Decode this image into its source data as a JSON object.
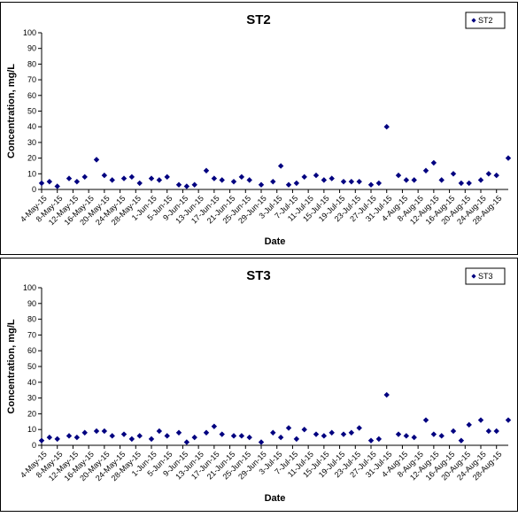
{
  "chart_data": [
    {
      "type": "scatter",
      "title": "ST2",
      "xlabel": "Date",
      "ylabel": "Concentration, mg/L",
      "ylim": [
        0,
        100
      ],
      "yticks": [
        0,
        10,
        20,
        30,
        40,
        50,
        60,
        70,
        80,
        90,
        100
      ],
      "xlim": [
        "2015-05-04",
        "2015-08-31"
      ],
      "x_tick_labels": [
        "4-May-15",
        "8-May-15",
        "12-May-15",
        "16-May-15",
        "20-May-15",
        "24-May-15",
        "28-May-15",
        "1-Jun-15",
        "5-Jun-15",
        "9-Jun-15",
        "13-Jun-15",
        "17-Jun-15",
        "21-Jun-15",
        "25-Jun-15",
        "29-Jun-15",
        "3-Jul-15",
        "7-Jul-15",
        "11-Jul-15",
        "15-Jul-15",
        "19-Jul-15",
        "23-Jul-15",
        "27-Jul-15",
        "31-Jul-15",
        "4-Aug-15",
        "8-Aug-15",
        "12-Aug-15",
        "16-Aug-15",
        "20-Aug-15",
        "24-Aug-15",
        "28-Aug-15"
      ],
      "legend_position": "top-right",
      "grid": false,
      "series": [
        {
          "name": "ST2",
          "color": "#000080",
          "marker": "diamond",
          "x": [
            "2015-05-04",
            "2015-05-06",
            "2015-05-08",
            "2015-05-11",
            "2015-05-13",
            "2015-05-15",
            "2015-05-18",
            "2015-05-20",
            "2015-05-22",
            "2015-05-25",
            "2015-05-27",
            "2015-05-29",
            "2015-06-01",
            "2015-06-03",
            "2015-06-05",
            "2015-06-08",
            "2015-06-10",
            "2015-06-12",
            "2015-06-15",
            "2015-06-17",
            "2015-06-19",
            "2015-06-22",
            "2015-06-24",
            "2015-06-26",
            "2015-06-29",
            "2015-07-02",
            "2015-07-04",
            "2015-07-06",
            "2015-07-08",
            "2015-07-10",
            "2015-07-13",
            "2015-07-15",
            "2015-07-17",
            "2015-07-20",
            "2015-07-22",
            "2015-07-24",
            "2015-07-27",
            "2015-07-29",
            "2015-07-31",
            "2015-08-03",
            "2015-08-05",
            "2015-08-07",
            "2015-08-10",
            "2015-08-12",
            "2015-08-14",
            "2015-08-17",
            "2015-08-19",
            "2015-08-21",
            "2015-08-24",
            "2015-08-26",
            "2015-08-28",
            "2015-08-31"
          ],
          "y": [
            4,
            5,
            2,
            7,
            5,
            8,
            19,
            9,
            6,
            7,
            8,
            4,
            7,
            6,
            8,
            3,
            2,
            3,
            12,
            7,
            6,
            5,
            8,
            6,
            3,
            5,
            15,
            3,
            4,
            8,
            9,
            6,
            7,
            5,
            5,
            5,
            3,
            4,
            40,
            9,
            6,
            6,
            12,
            17,
            6,
            10,
            4,
            4,
            6,
            10,
            9,
            20
          ]
        }
      ]
    },
    {
      "type": "scatter",
      "title": "ST3",
      "xlabel": "Date",
      "ylabel": "Concentration, mg/L",
      "ylim": [
        0,
        100
      ],
      "yticks": [
        0,
        10,
        20,
        30,
        40,
        50,
        60,
        70,
        80,
        90,
        100
      ],
      "xlim": [
        "2015-05-04",
        "2015-08-31"
      ],
      "x_tick_labels": [
        "4-May-15",
        "8-May-15",
        "12-May-15",
        "16-May-15",
        "20-May-15",
        "24-May-15",
        "28-May-15",
        "1-Jun-15",
        "5-Jun-15",
        "9-Jun-15",
        "13-Jun-15",
        "17-Jun-15",
        "21-Jun-15",
        "25-Jun-15",
        "29-Jun-15",
        "3-Jul-15",
        "7-Jul-15",
        "11-Jul-15",
        "15-Jul-15",
        "19-Jul-15",
        "23-Jul-15",
        "27-Jul-15",
        "31-Jul-15",
        "4-Aug-15",
        "8-Aug-15",
        "12-Aug-15",
        "16-Aug-15",
        "20-Aug-15",
        "24-Aug-15",
        "28-Aug-15"
      ],
      "legend_position": "top-right",
      "grid": false,
      "series": [
        {
          "name": "ST3",
          "color": "#000080",
          "marker": "diamond",
          "x": [
            "2015-05-04",
            "2015-05-06",
            "2015-05-08",
            "2015-05-11",
            "2015-05-13",
            "2015-05-15",
            "2015-05-18",
            "2015-05-20",
            "2015-05-22",
            "2015-05-25",
            "2015-05-27",
            "2015-05-29",
            "2015-06-01",
            "2015-06-03",
            "2015-06-05",
            "2015-06-08",
            "2015-06-10",
            "2015-06-12",
            "2015-06-15",
            "2015-06-17",
            "2015-06-19",
            "2015-06-22",
            "2015-06-24",
            "2015-06-26",
            "2015-06-29",
            "2015-07-02",
            "2015-07-04",
            "2015-07-06",
            "2015-07-08",
            "2015-07-10",
            "2015-07-13",
            "2015-07-15",
            "2015-07-17",
            "2015-07-20",
            "2015-07-22",
            "2015-07-24",
            "2015-07-27",
            "2015-07-29",
            "2015-07-31",
            "2015-08-03",
            "2015-08-05",
            "2015-08-07",
            "2015-08-10",
            "2015-08-12",
            "2015-08-14",
            "2015-08-17",
            "2015-08-19",
            "2015-08-21",
            "2015-08-24",
            "2015-08-26",
            "2015-08-28",
            "2015-08-31"
          ],
          "y": [
            3,
            5,
            4,
            6,
            5,
            8,
            9,
            9,
            6,
            7,
            4,
            6,
            4,
            9,
            6,
            8,
            2,
            5,
            8,
            12,
            7,
            6,
            6,
            5,
            2,
            8,
            5,
            11,
            4,
            10,
            7,
            6,
            8,
            7,
            8,
            11,
            3,
            4,
            32,
            7,
            6,
            5,
            16,
            7,
            6,
            9,
            3,
            13,
            16,
            9,
            9,
            16
          ]
        }
      ]
    }
  ]
}
